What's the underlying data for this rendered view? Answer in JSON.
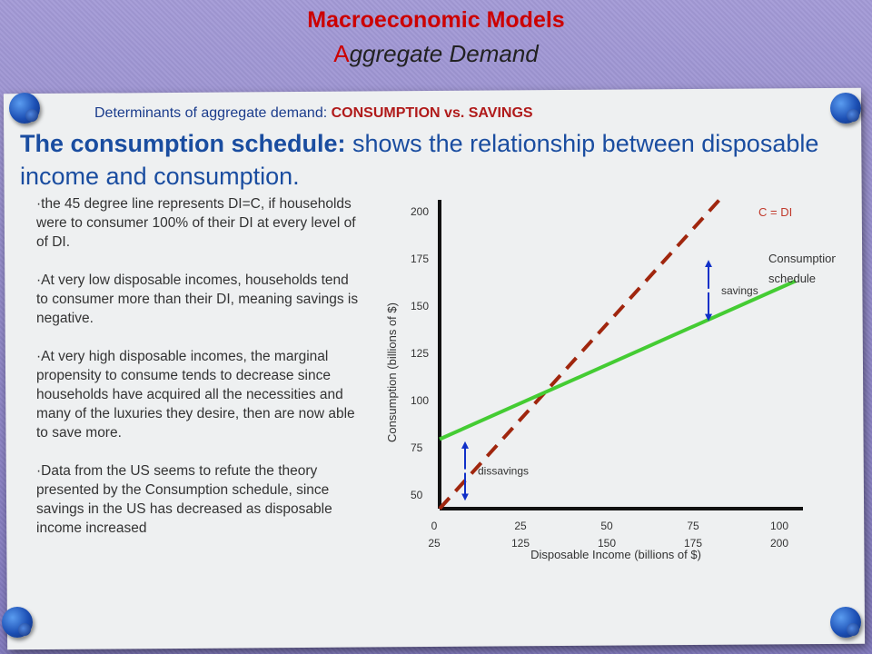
{
  "header": {
    "title": "Macroeconomic Models",
    "subtitle_first_letter": "A",
    "subtitle_rest": "ggregate Demand"
  },
  "slide": {
    "determinants_prefix": "Determinants of aggregate demand: ",
    "determinants_caps": "CONSUMPTION vs. SAVINGS",
    "headline_bold": "The consumption schedule:",
    "headline_rest": " shows the relationship between disposable income and consumption.",
    "bullets": [
      "·the 45 degree line represents DI=C, if households were to consumer 100% of their DI at every level of of DI.",
      "·At very low disposable incomes, households tend to consumer more than their DI, meaning savings is negative.",
      "·At very high disposable incomes, the marginal propensity to consume tends to decrease since households have acquired all the necessities and many of the luxuries they desire, then are now able to save more.",
      "·Data from the US seems to refute the theory presented by the Consumption schedule, since savings in the US has decreased as disposable income increased"
    ]
  },
  "colors": {
    "title_red": "#cc0000",
    "headline_blue": "#1a4da0",
    "consumption_green": "#44cc33",
    "line45_red": "#a0260e",
    "arrow_blue": "#1030c8"
  },
  "chart_data": {
    "type": "line",
    "xlabel": "Disposable Income (billions of $)",
    "ylabel": "Consumption (billions of $)",
    "x_ticks_top": [
      "0",
      "25",
      "50",
      "75",
      "100"
    ],
    "x_ticks_bottom": [
      "25",
      "125",
      "150",
      "175",
      "200"
    ],
    "y_ticks": [
      "50",
      "75",
      "100",
      "125",
      "150",
      "175",
      "200"
    ],
    "xlim": [
      0,
      100
    ],
    "ylim": [
      40,
      200
    ],
    "series": [
      {
        "name": "C = DI",
        "style": "dashed",
        "color": "#a0260e",
        "x": [
          0,
          77
        ],
        "y": [
          40,
          200
        ]
      },
      {
        "name": "Consumption schedule",
        "style": "solid",
        "color": "#44cc33",
        "x": [
          0,
          98
        ],
        "y": [
          76,
          158
        ]
      }
    ],
    "annotations": [
      {
        "text": "savings",
        "x": 74,
        "y_from": 167,
        "y_to": 139
      },
      {
        "text": "dissavings",
        "x": 7,
        "y_from": 46,
        "y_to": 73
      }
    ],
    "legend_labels": {
      "line45": "C = DI",
      "consumption_line1": "Consumption",
      "consumption_line2": "schedule"
    }
  }
}
